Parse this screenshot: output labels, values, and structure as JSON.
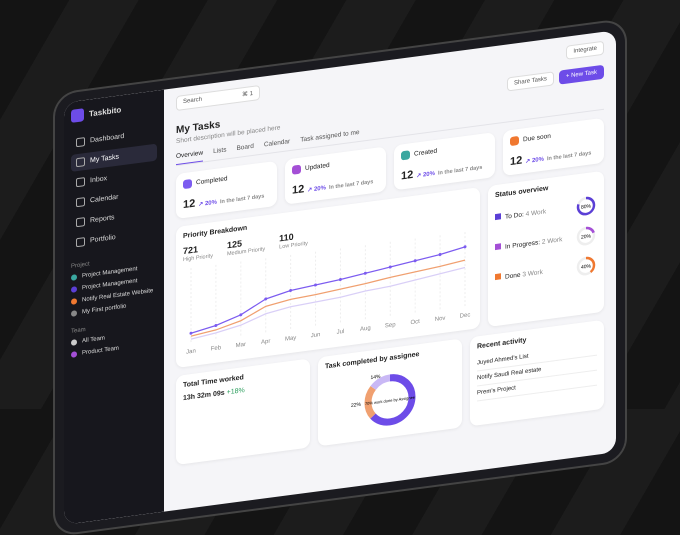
{
  "sidebar": {
    "brand": "Taskbito",
    "nav": [
      "Dashboard",
      "My Tasks",
      "Inbox",
      "Calendar",
      "Reports",
      "Portfolio"
    ],
    "project_label": "Project",
    "projects": [
      "Project Management",
      "Project Management",
      "Notify Real Estate Website",
      "My First portfolio"
    ],
    "team_label": "Team",
    "teams": [
      "All Team",
      "Product Team"
    ]
  },
  "topbar": {
    "search": "Search",
    "shortcut": "⌘ 1",
    "integrate": "Integrate",
    "share": "Share Tasks",
    "new_task": "New Task"
  },
  "header": {
    "title": "My Tasks",
    "subtitle": "Short description will be placed here",
    "tabs": [
      "Overview",
      "Lists",
      "Board",
      "Calendar",
      "Task assigned to me"
    ]
  },
  "cards": [
    {
      "label": "Completed",
      "value": "12",
      "change": "20%",
      "note": "In the last 7 days"
    },
    {
      "label": "Updated",
      "value": "12",
      "change": "20%",
      "note": "In the last 7 days"
    },
    {
      "label": "Created",
      "value": "12",
      "change": "20%",
      "note": "In the last 7 days"
    },
    {
      "label": "Due soon",
      "value": "12",
      "change": "20%",
      "note": "In the last 7 days"
    }
  ],
  "priority": {
    "title": "Priority Breakdown",
    "stats": [
      {
        "value": "721",
        "label": "High Priority"
      },
      {
        "value": "125",
        "label": "Medium Priority"
      },
      {
        "value": "110",
        "label": "Low Priority"
      }
    ],
    "chart_data": {
      "type": "line",
      "categories": [
        "Jan",
        "Feb",
        "Mar",
        "Apr",
        "May",
        "Jun",
        "Jul",
        "Aug",
        "Sep",
        "Oct",
        "Nov",
        "Dec"
      ],
      "ylim": [
        0,
        100
      ],
      "series": [
        {
          "color": "#7c5cf0",
          "values": [
            12,
            18,
            28,
            45,
            52,
            55,
            58,
            62,
            66,
            70,
            74,
            80
          ]
        },
        {
          "color": "#f0a070",
          "values": [
            8,
            12,
            20,
            35,
            40,
            42,
            45,
            48,
            52,
            55,
            58,
            62
          ]
        },
        {
          "color": "#d9cff7",
          "values": [
            4,
            8,
            14,
            25,
            30,
            32,
            34,
            38,
            40,
            44,
            48,
            52
          ]
        }
      ]
    }
  },
  "status": {
    "title": "Status overview",
    "items": [
      {
        "label": "To Do:",
        "count": "4 Work",
        "percent": 80,
        "percent_label": "80%",
        "color": "#5b3fd6"
      },
      {
        "label": "In Progress:",
        "count": "2 Work",
        "percent": 20,
        "percent_label": "20%",
        "color": "#a44fd6"
      },
      {
        "label": "Done",
        "count": "3 Work",
        "percent": 40,
        "percent_label": "40%",
        "color": "#f07830"
      }
    ]
  },
  "time": {
    "title": "Total Time worked",
    "value": "13h 32m 09s",
    "change": "+18%"
  },
  "assignee": {
    "title": "Task completed by assignee",
    "center": "70% work done by Assignee",
    "segments": [
      {
        "value": 64,
        "color": "#6d4ce8"
      },
      {
        "value": 22,
        "label": "22%",
        "color": "#f0a070"
      },
      {
        "value": 14,
        "label": "14%",
        "color": "#c9b8f5"
      }
    ]
  },
  "activity": {
    "title": "Recent activity",
    "items": [
      "Juyed Ahmed's List",
      "Notify Saudi Real estate",
      "Prem's Project"
    ]
  }
}
